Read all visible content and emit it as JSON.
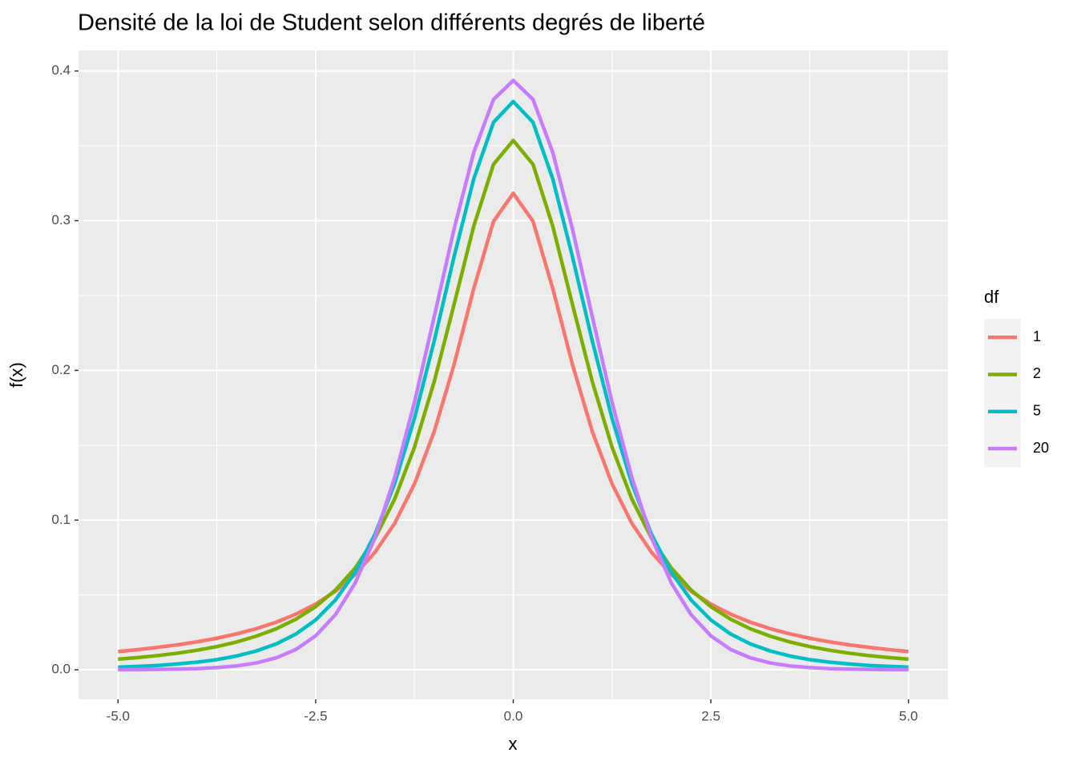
{
  "chart_data": {
    "type": "line",
    "title": "Densité de la loi de Student selon différents degrés de liberté",
    "x_label": "x",
    "y_label": "f(x)",
    "x": [
      -5,
      -4.75,
      -4.5,
      -4.25,
      -4,
      -3.75,
      -3.5,
      -3.25,
      -3,
      -2.75,
      -2.5,
      -2.25,
      -2,
      -1.75,
      -1.5,
      -1.25,
      -1,
      -0.75,
      -0.5,
      -0.25,
      0,
      0.25,
      0.5,
      0.75,
      1,
      1.25,
      1.5,
      1.75,
      2,
      2.25,
      2.5,
      2.75,
      3,
      3.25,
      3.5,
      3.75,
      4,
      4.25,
      4.5,
      4.75,
      5
    ],
    "series": [
      {
        "name": "1",
        "color": "#F8766D",
        "values": [
          0.0122,
          0.0135,
          0.015,
          0.0167,
          0.0187,
          0.0211,
          0.024,
          0.0275,
          0.0318,
          0.0372,
          0.0439,
          0.0525,
          0.0637,
          0.0785,
          0.0979,
          0.1242,
          0.1592,
          0.2037,
          0.2546,
          0.2996,
          0.3183,
          0.2996,
          0.2546,
          0.2037,
          0.1592,
          0.1242,
          0.0979,
          0.0785,
          0.0637,
          0.0525,
          0.0439,
          0.0372,
          0.0318,
          0.0275,
          0.024,
          0.0211,
          0.0187,
          0.0167,
          0.015,
          0.0135,
          0.0122
        ]
      },
      {
        "name": "2",
        "color": "#7CAE00",
        "values": [
          0.0071,
          0.0082,
          0.0095,
          0.0111,
          0.0131,
          0.0155,
          0.0186,
          0.0225,
          0.0274,
          0.0338,
          0.0422,
          0.0533,
          0.068,
          0.0878,
          0.1141,
          0.1487,
          0.1925,
          0.2438,
          0.2963,
          0.3376,
          0.3536,
          0.3376,
          0.2963,
          0.2438,
          0.1925,
          0.1487,
          0.1141,
          0.0878,
          0.068,
          0.0533,
          0.0422,
          0.0338,
          0.0274,
          0.0225,
          0.0186,
          0.0155,
          0.0131,
          0.0111,
          0.0095,
          0.0082,
          0.0071
        ]
      },
      {
        "name": "5",
        "color": "#00BFC4",
        "values": [
          0.0018,
          0.0023,
          0.0029,
          0.0039,
          0.0051,
          0.0068,
          0.0092,
          0.0126,
          0.0173,
          0.0239,
          0.0333,
          0.0466,
          0.0651,
          0.0905,
          0.1245,
          0.1679,
          0.2197,
          0.2757,
          0.3279,
          0.3657,
          0.3796,
          0.3657,
          0.3279,
          0.2757,
          0.2197,
          0.1679,
          0.1245,
          0.0905,
          0.0651,
          0.0466,
          0.0333,
          0.0239,
          0.0173,
          0.0126,
          0.0092,
          0.0068,
          0.0051,
          0.0039,
          0.0029,
          0.0023,
          0.0018
        ]
      },
      {
        "name": "20",
        "color": "#C77CFF",
        "values": [
          0.0001,
          0.0001,
          0.0003,
          0.0005,
          0.0008,
          0.0015,
          0.0026,
          0.0046,
          0.008,
          0.0136,
          0.0227,
          0.0368,
          0.058,
          0.0882,
          0.1286,
          0.1787,
          0.2359,
          0.2942,
          0.3456,
          0.381,
          0.3937,
          0.381,
          0.3456,
          0.2942,
          0.2359,
          0.1787,
          0.1286,
          0.0882,
          0.058,
          0.0368,
          0.0227,
          0.0136,
          0.008,
          0.0046,
          0.0026,
          0.0015,
          0.0008,
          0.0005,
          0.0003,
          0.0001,
          0.0001
        ]
      }
    ],
    "legend_title": "df",
    "legend": "right",
    "xlim": [
      -5.5,
      5.5
    ],
    "xticks": [
      {
        "value": -5,
        "label": "-5.0"
      },
      {
        "value": -2.5,
        "label": "-2.5"
      },
      {
        "value": 0,
        "label": "0.0"
      },
      {
        "value": 2.5,
        "label": "2.5"
      },
      {
        "value": 5,
        "label": "5.0"
      }
    ],
    "ylim": [
      -0.0197,
      0.4137
    ],
    "yticks": [
      {
        "value": 0,
        "label": "0.0"
      },
      0.1,
      0.2,
      0.3,
      0.4
    ],
    "grid": true,
    "minor_grid": true
  }
}
